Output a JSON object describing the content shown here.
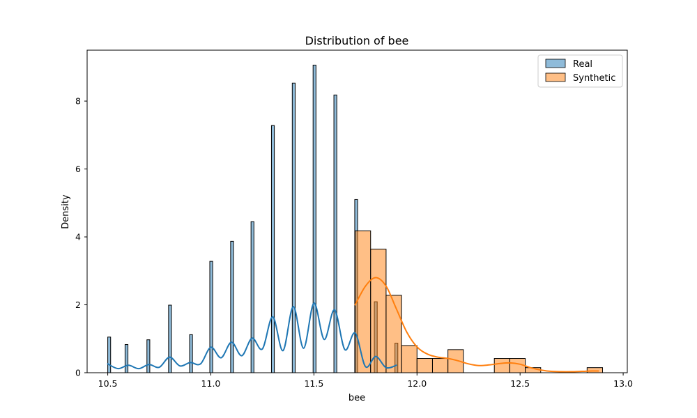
{
  "chart_data": {
    "type": "bar",
    "title": "Distribution of bee",
    "xlabel": "bee",
    "ylabel": "Density",
    "xlim": [
      10.4,
      13.02
    ],
    "ylim": [
      0,
      9.5
    ],
    "xticks": [
      "10.5",
      "11.0",
      "11.5",
      "12.0",
      "12.5",
      "13.0"
    ],
    "yticks": [
      "0",
      "2",
      "4",
      "6",
      "8"
    ],
    "grid": false,
    "legend_position": "top-right",
    "legend": [
      "Real",
      "Synthetic"
    ],
    "colors": {
      "real_fill": "#1f77b4",
      "real_line": "#1f77b4",
      "synthetic_fill": "#ff7f0e",
      "synthetic_line": "#ff7f0e",
      "edge": "#000000"
    },
    "series": [
      {
        "name": "Real",
        "kind": "histogram",
        "bins": [
          {
            "x0": 10.5,
            "x1": 10.514,
            "density": 1.05
          },
          {
            "x0": 10.584,
            "x1": 10.598,
            "density": 0.83
          },
          {
            "x0": 10.69,
            "x1": 10.704,
            "density": 0.97
          },
          {
            "x0": 10.795,
            "x1": 10.809,
            "density": 1.99
          },
          {
            "x0": 10.897,
            "x1": 10.911,
            "density": 1.12
          },
          {
            "x0": 10.995,
            "x1": 11.009,
            "density": 3.28
          },
          {
            "x0": 11.096,
            "x1": 11.11,
            "density": 3.87
          },
          {
            "x0": 11.195,
            "x1": 11.209,
            "density": 4.45
          },
          {
            "x0": 11.294,
            "x1": 11.308,
            "density": 7.28
          },
          {
            "x0": 11.395,
            "x1": 11.409,
            "density": 8.53
          },
          {
            "x0": 11.496,
            "x1": 11.51,
            "density": 9.06
          },
          {
            "x0": 11.597,
            "x1": 11.611,
            "density": 8.18
          },
          {
            "x0": 11.698,
            "x1": 11.712,
            "density": 5.1
          },
          {
            "x0": 11.793,
            "x1": 11.807,
            "density": 2.09
          },
          {
            "x0": 11.893,
            "x1": 11.907,
            "density": 0.87
          }
        ],
        "kde": {
          "x": [
            10.5,
            10.55,
            10.6,
            10.65,
            10.7,
            10.75,
            10.8,
            10.85,
            10.9,
            10.95,
            11.0,
            11.05,
            11.1,
            11.15,
            11.2,
            11.25,
            11.3,
            11.35,
            11.4,
            11.45,
            11.5,
            11.55,
            11.6,
            11.65,
            11.7,
            11.75,
            11.8,
            11.85,
            11.9
          ],
          "y": [
            0.26,
            0.12,
            0.22,
            0.12,
            0.24,
            0.16,
            0.46,
            0.2,
            0.3,
            0.26,
            0.75,
            0.44,
            0.9,
            0.5,
            1.02,
            0.7,
            1.65,
            0.65,
            1.95,
            0.72,
            2.05,
            0.98,
            1.85,
            0.68,
            1.17,
            0.18,
            0.48,
            0.15,
            0.22
          ]
        }
      },
      {
        "name": "Synthetic",
        "kind": "histogram",
        "bins": [
          {
            "x0": 11.7,
            "x1": 11.775,
            "density": 4.18
          },
          {
            "x0": 11.775,
            "x1": 11.85,
            "density": 3.64
          },
          {
            "x0": 11.85,
            "x1": 11.925,
            "density": 2.28
          },
          {
            "x0": 11.925,
            "x1": 12.0,
            "density": 0.8
          },
          {
            "x0": 12.0,
            "x1": 12.075,
            "density": 0.42
          },
          {
            "x0": 12.075,
            "x1": 12.15,
            "density": 0.42
          },
          {
            "x0": 12.15,
            "x1": 12.225,
            "density": 0.68
          },
          {
            "x0": 12.225,
            "x1": 12.3,
            "density": 0.0
          },
          {
            "x0": 12.3,
            "x1": 12.375,
            "density": 0.0
          },
          {
            "x0": 12.375,
            "x1": 12.45,
            "density": 0.42
          },
          {
            "x0": 12.45,
            "x1": 12.525,
            "density": 0.42
          },
          {
            "x0": 12.525,
            "x1": 12.6,
            "density": 0.15
          },
          {
            "x0": 12.6,
            "x1": 12.675,
            "density": 0.0
          },
          {
            "x0": 12.675,
            "x1": 12.75,
            "density": 0.0
          },
          {
            "x0": 12.75,
            "x1": 12.825,
            "density": 0.0
          },
          {
            "x0": 12.825,
            "x1": 12.9,
            "density": 0.15
          }
        ],
        "kde": {
          "x": [
            11.7,
            11.75,
            11.8,
            11.85,
            11.9,
            11.95,
            12.0,
            12.05,
            12.1,
            12.15,
            12.2,
            12.25,
            12.3,
            12.35,
            12.4,
            12.45,
            12.5,
            12.55,
            12.6,
            12.65,
            12.7,
            12.75,
            12.8,
            12.85,
            12.88
          ],
          "y": [
            2.0,
            2.55,
            2.8,
            2.55,
            1.88,
            1.2,
            0.76,
            0.55,
            0.46,
            0.42,
            0.35,
            0.26,
            0.21,
            0.23,
            0.27,
            0.29,
            0.25,
            0.15,
            0.08,
            0.04,
            0.03,
            0.03,
            0.04,
            0.05,
            0.05
          ]
        }
      }
    ]
  }
}
